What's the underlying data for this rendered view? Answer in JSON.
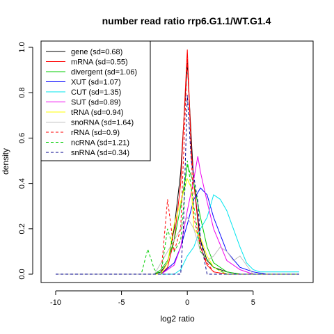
{
  "chart_data": {
    "type": "line",
    "title": "number read ratio rrp6.G1.1/WT.G1.4",
    "xlabel": "log2 ratio",
    "ylabel": "density",
    "xlim": [
      -10,
      8.5
    ],
    "ylim": [
      0,
      1.0
    ],
    "x_ticks": [
      -10,
      -5,
      0,
      5
    ],
    "y_ticks": [
      0.0,
      0.2,
      0.4,
      0.6,
      0.8,
      1.0
    ],
    "x_tick_labels": [
      "-10",
      "-5",
      "0",
      "5"
    ],
    "y_tick_labels": [
      "0.0",
      "0.2",
      "0.4",
      "0.6",
      "0.8",
      "1.0"
    ],
    "grid": false,
    "legend_position": "top-left",
    "series": [
      {
        "name": "gene (sd=0.68)",
        "color": "#000000",
        "dash": false,
        "points": [
          [
            -10,
            0
          ],
          [
            -2.5,
            0
          ],
          [
            -2,
            0.01
          ],
          [
            -1.5,
            0.05
          ],
          [
            -1,
            0.2
          ],
          [
            -0.5,
            0.45
          ],
          [
            0,
            0.93
          ],
          [
            0.3,
            0.6
          ],
          [
            0.5,
            0.4
          ],
          [
            1,
            0.15
          ],
          [
            1.5,
            0.06
          ],
          [
            2,
            0.03
          ],
          [
            3,
            0.01
          ],
          [
            4,
            0
          ],
          [
            8.5,
            0
          ]
        ]
      },
      {
        "name": "mRNA (sd=0.55)",
        "color": "#ff0000",
        "dash": false,
        "points": [
          [
            -10,
            0
          ],
          [
            -2,
            0
          ],
          [
            -1.5,
            0.03
          ],
          [
            -1,
            0.15
          ],
          [
            -0.5,
            0.4
          ],
          [
            0,
            0.99
          ],
          [
            0.3,
            0.55
          ],
          [
            0.5,
            0.4
          ],
          [
            1,
            0.12
          ],
          [
            1.5,
            0.04
          ],
          [
            2,
            0.01
          ],
          [
            3,
            0
          ],
          [
            8.5,
            0
          ]
        ]
      },
      {
        "name": "divergent (sd=1.06)",
        "color": "#00cd00",
        "dash": false,
        "points": [
          [
            -10,
            0
          ],
          [
            -2.5,
            0
          ],
          [
            -2,
            0.02
          ],
          [
            -1.5,
            0.06
          ],
          [
            -1,
            0.15
          ],
          [
            -0.5,
            0.3
          ],
          [
            0,
            0.48
          ],
          [
            0.5,
            0.4
          ],
          [
            1,
            0.25
          ],
          [
            1.5,
            0.12
          ],
          [
            2,
            0.05
          ],
          [
            3,
            0.01
          ],
          [
            4,
            0
          ],
          [
            8.5,
            0
          ]
        ]
      },
      {
        "name": "XUT (sd=1.07)",
        "color": "#0000ff",
        "dash": false,
        "points": [
          [
            -10,
            0
          ],
          [
            -2,
            0
          ],
          [
            -1,
            0.05
          ],
          [
            -0.5,
            0.12
          ],
          [
            0,
            0.22
          ],
          [
            0.5,
            0.33
          ],
          [
            1,
            0.38
          ],
          [
            1.5,
            0.35
          ],
          [
            2,
            0.25
          ],
          [
            3,
            0.1
          ],
          [
            4,
            0.03
          ],
          [
            5,
            0.01
          ],
          [
            6,
            0
          ],
          [
            8.5,
            0
          ]
        ]
      },
      {
        "name": "CUT (sd=1.35)",
        "color": "#00e5ee",
        "dash": false,
        "points": [
          [
            -10,
            0
          ],
          [
            -1,
            0
          ],
          [
            -0.5,
            0.02
          ],
          [
            0,
            0.08
          ],
          [
            0.5,
            0.12
          ],
          [
            1,
            0.2
          ],
          [
            1.5,
            0.25
          ],
          [
            2,
            0.35
          ],
          [
            2.5,
            0.33
          ],
          [
            3,
            0.28
          ],
          [
            3.5,
            0.2
          ],
          [
            4,
            0.12
          ],
          [
            4.5,
            0.05
          ],
          [
            5,
            0.02
          ],
          [
            5.5,
            0.01
          ],
          [
            6,
            0.01
          ],
          [
            8.5,
            0.01
          ]
        ]
      },
      {
        "name": "SUT (sd=0.89)",
        "color": "#ee00ee",
        "dash": false,
        "points": [
          [
            -10,
            0
          ],
          [
            -2,
            0
          ],
          [
            -1,
            0.04
          ],
          [
            -0.5,
            0.12
          ],
          [
            0,
            0.28
          ],
          [
            0.5,
            0.42
          ],
          [
            0.8,
            0.52
          ],
          [
            1,
            0.45
          ],
          [
            1.5,
            0.32
          ],
          [
            2,
            0.2
          ],
          [
            3,
            0.06
          ],
          [
            4,
            0.02
          ],
          [
            5,
            0
          ],
          [
            8.5,
            0
          ]
        ]
      },
      {
        "name": "tRNA (sd=0.94)",
        "color": "#ffff00",
        "dash": false,
        "points": [
          [
            -10,
            0
          ],
          [
            -2,
            0
          ],
          [
            -1.5,
            0.05
          ],
          [
            -1,
            0.22
          ],
          [
            -0.5,
            0.32
          ],
          [
            0,
            0.42
          ],
          [
            0.3,
            0.38
          ],
          [
            0.5,
            0.2
          ],
          [
            1,
            0.16
          ],
          [
            1.5,
            0.08
          ],
          [
            2,
            0.03
          ],
          [
            3,
            0
          ],
          [
            8.5,
            0
          ]
        ]
      },
      {
        "name": "snoRNA (sd=1.64)",
        "color": "#bebebe",
        "dash": false,
        "points": [
          [
            -10,
            0
          ],
          [
            -2.5,
            0
          ],
          [
            -2,
            0.05
          ],
          [
            -1.5,
            0.1
          ],
          [
            -1,
            0.15
          ],
          [
            -0.5,
            0.2
          ],
          [
            0,
            0.25
          ],
          [
            0.5,
            0.2
          ],
          [
            1,
            0.1
          ],
          [
            1.5,
            0.06
          ],
          [
            2,
            0.08
          ],
          [
            2.5,
            0.12
          ],
          [
            3,
            0.1
          ],
          [
            3.5,
            0.06
          ],
          [
            4,
            0.08
          ],
          [
            4.5,
            0.04
          ],
          [
            5,
            0
          ],
          [
            8.5,
            0
          ]
        ]
      },
      {
        "name": "rRNA (sd=0.9)",
        "color": "#ff0000",
        "dash": true,
        "points": [
          [
            -10,
            0
          ],
          [
            -2,
            0
          ],
          [
            -1.5,
            0.33
          ],
          [
            -1,
            0.1
          ],
          [
            -0.5,
            0.2
          ],
          [
            0,
            0.95
          ],
          [
            0.5,
            0.25
          ],
          [
            1,
            0.12
          ],
          [
            1.5,
            0.05
          ],
          [
            2,
            0.01
          ],
          [
            3,
            0
          ],
          [
            8.5,
            0
          ]
        ]
      },
      {
        "name": "ncRNA (sd=1.21)",
        "color": "#00cd00",
        "dash": true,
        "points": [
          [
            -10,
            0
          ],
          [
            -3.5,
            0
          ],
          [
            -3,
            0.11
          ],
          [
            -2.5,
            0.02
          ],
          [
            -2,
            0.0
          ],
          [
            -1.5,
            0.2
          ],
          [
            -1,
            0.1
          ],
          [
            -0.5,
            0.15
          ],
          [
            0,
            0.5
          ],
          [
            0.5,
            0.3
          ],
          [
            1,
            0.1
          ],
          [
            2,
            0.03
          ],
          [
            3,
            0
          ],
          [
            8.5,
            0
          ]
        ]
      },
      {
        "name": "snRNA (sd=0.34)",
        "color": "#00008b",
        "dash": true,
        "points": [
          [
            -10,
            0
          ],
          [
            -0.5,
            0
          ],
          [
            -0.3,
            0.2
          ],
          [
            0,
            0.79
          ],
          [
            0.3,
            0.5
          ],
          [
            0.8,
            0.32
          ],
          [
            1,
            0.15
          ],
          [
            1.5,
            0
          ],
          [
            8.5,
            0
          ]
        ]
      }
    ]
  }
}
